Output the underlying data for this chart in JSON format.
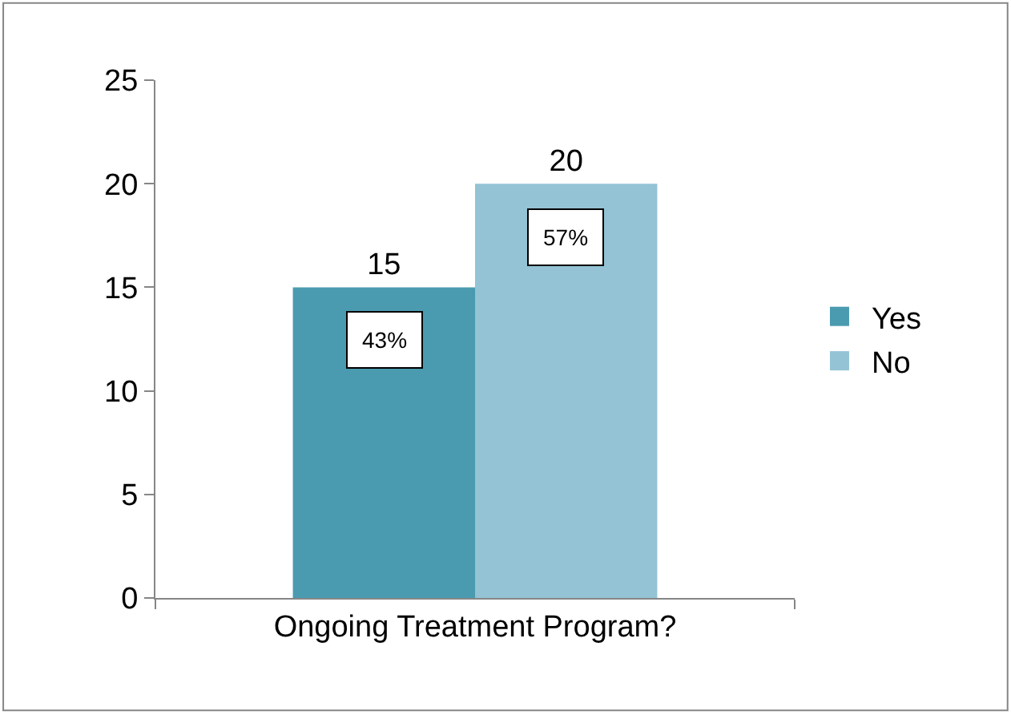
{
  "chart_data": {
    "type": "bar",
    "categories": [
      "Ongoing Treatment Program?"
    ],
    "series": [
      {
        "name": "Yes",
        "color": "#4a9bb0",
        "values": [
          15
        ]
      },
      {
        "name": "No",
        "color": "#93c3d4",
        "values": [
          20
        ]
      }
    ],
    "ylim": [
      0,
      25
    ],
    "yticks": [
      0,
      5,
      10,
      15,
      20,
      25
    ],
    "grid": false,
    "legend": "right",
    "data_labels": true,
    "annotations": [
      "43%",
      "57%"
    ]
  }
}
